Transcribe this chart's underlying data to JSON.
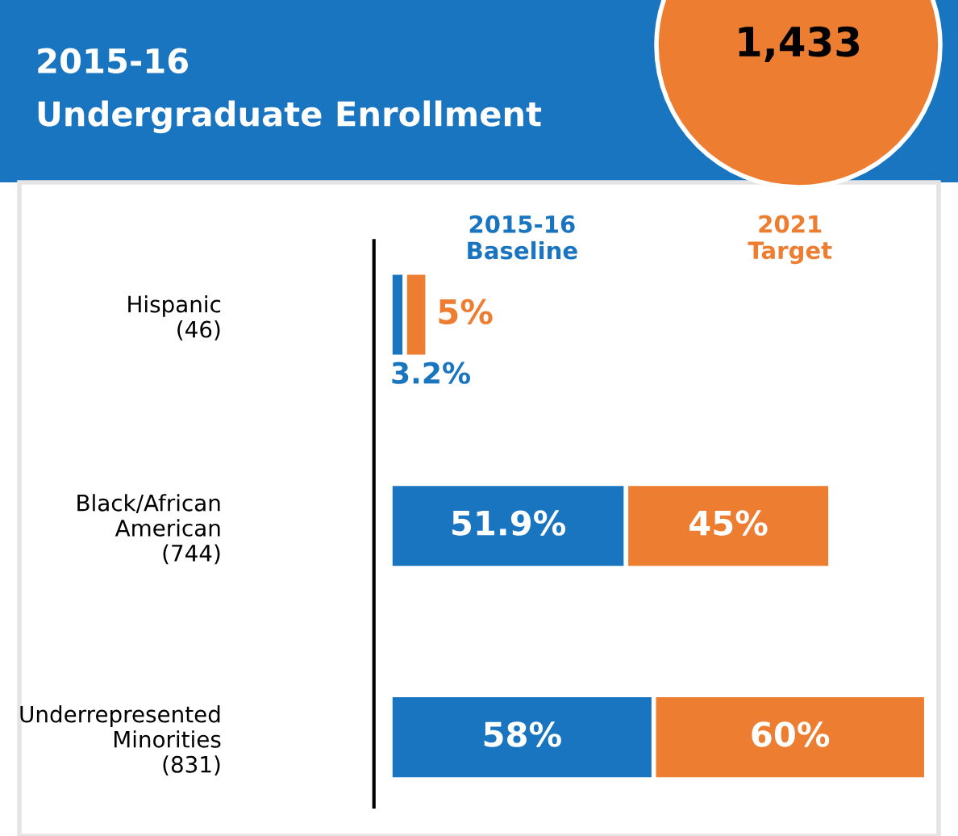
{
  "chart_data": {
    "type": "bar",
    "orientation": "horizontal",
    "stacked": true,
    "data_labels": true,
    "title": "2015-16\nUndergraduate Enrollment",
    "annotations": [
      "1,433"
    ],
    "categories": [
      "Hispanic\n(46)",
      "Black/African\nAmerican\n(744)",
      "Underrepresented\nMinorities\n(831)"
    ],
    "xlim": [
      0,
      120
    ],
    "tick_labels": "y",
    "series": [
      {
        "name": "2015-16\nBaseline",
        "color": "#1a75c1",
        "values": [
          3.2,
          51.9,
          58
        ],
        "value_labels": [
          "3.2%",
          "51.9%",
          "58%"
        ]
      },
      {
        "name": "2021\nTarget",
        "color": "#ed7d31",
        "values": [
          5,
          45,
          60
        ],
        "value_labels": [
          "5%",
          "45%",
          "60%"
        ]
      }
    ]
  }
}
